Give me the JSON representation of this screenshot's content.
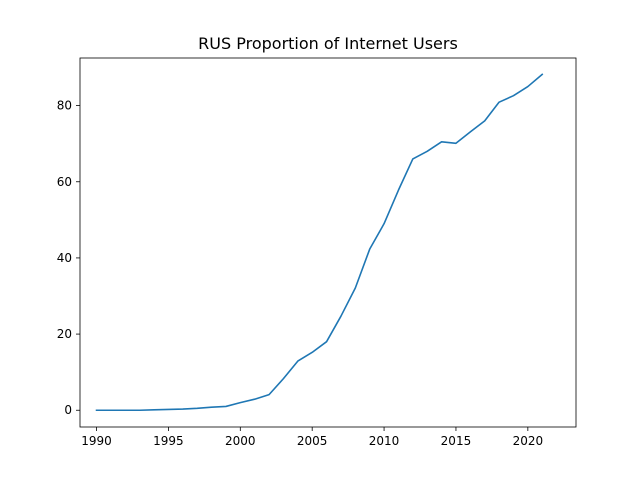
{
  "chart_data": {
    "type": "line",
    "title": "RUS Proportion of Internet Users",
    "xlabel": "",
    "ylabel": "",
    "xlim": [
      1988.85,
      2023.35
    ],
    "ylim": [
      -4.4,
      92.5
    ],
    "grid": false,
    "line_color": "#1f77b4",
    "x_ticks": [
      1990,
      1995,
      2000,
      2005,
      2010,
      2015,
      2020
    ],
    "y_ticks": [
      0,
      20,
      40,
      60,
      80
    ],
    "x": [
      1990,
      1991,
      1992,
      1993,
      1994,
      1995,
      1996,
      1997,
      1998,
      1999,
      2000,
      2001,
      2002,
      2003,
      2004,
      2005,
      2006,
      2007,
      2008,
      2009,
      2010,
      2011,
      2012,
      2013,
      2014,
      2015,
      2016,
      2017,
      2018,
      2019,
      2020,
      2021
    ],
    "series": [
      {
        "values": [
          0.0,
          0.0,
          0.0,
          0.0,
          0.1,
          0.2,
          0.3,
          0.5,
          0.8,
          1.0,
          2.0,
          2.9,
          4.1,
          8.3,
          12.9,
          15.2,
          18.0,
          24.7,
          32.1,
          42.3,
          49.0,
          57.8,
          66.0,
          68.0,
          70.5,
          70.1,
          73.1,
          76.0,
          80.9,
          82.6,
          85.0,
          88.2
        ]
      }
    ]
  }
}
